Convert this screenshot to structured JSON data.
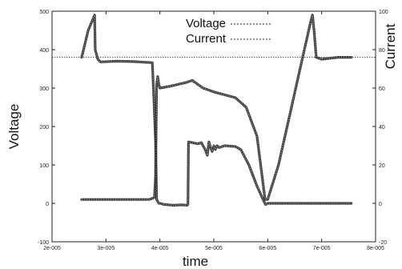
{
  "chart_data": {
    "type": "line",
    "title": "",
    "xlabel": "time",
    "ylabel_left": "Voltage",
    "ylabel_right": "Current",
    "xlim": [
      2e-05,
      8e-05
    ],
    "ylim_left": [
      -100,
      500
    ],
    "ylim_right": [
      -20,
      100
    ],
    "x_ticks": [
      2e-05,
      3e-05,
      4e-05,
      5e-05,
      6e-05,
      7e-05,
      8e-05
    ],
    "x_tick_labels": [
      "2e-005",
      "3e-005",
      "4e-005",
      "5e-005",
      "6e-005",
      "7e-005",
      "8e-005"
    ],
    "y_left_ticks": [
      -100,
      0,
      100,
      200,
      300,
      400,
      500
    ],
    "y_left_tick_labels": [
      "-100",
      "0",
      "100",
      "200",
      "300",
      "400",
      "500"
    ],
    "y_right_ticks": [
      -20,
      0,
      20,
      40,
      60,
      80,
      100
    ],
    "y_right_tick_labels": [
      "-20",
      "0",
      "20",
      "40",
      "60",
      "80",
      "100"
    ],
    "grid": false,
    "legend_position": "top-center",
    "series": [
      {
        "name": "Voltage",
        "axis": "left",
        "color": "#222222",
        "x": [
          2.55e-05,
          2.67e-05,
          2.79e-05,
          2.8e-05,
          2.85e-05,
          2.9e-05,
          3.2e-05,
          3.5e-05,
          3.86e-05,
          3.88e-05,
          3.92e-05,
          3.94e-05,
          3.98e-05,
          4.01e-05,
          4.07e-05,
          4.25e-05,
          4.4e-05,
          4.5e-05,
          4.52e-05,
          4.53e-05,
          4.7e-05,
          4.77e-05,
          4.8e-05,
          4.84e-05,
          4.88e-05,
          4.91e-05,
          4.94e-05,
          4.97e-05,
          5e-05,
          5.03e-05,
          5.06e-05,
          5.1e-05,
          5.2e-05,
          5.4e-05,
          5.5e-05,
          5.65e-05,
          5.8e-05,
          5.93e-05,
          5.96e-05,
          6e-05,
          6.2e-05,
          6.6e-05,
          6.83e-05,
          6.85e-05,
          6.88e-05,
          6.9e-05,
          7e-05,
          7.3e-05,
          7.55e-05
        ],
        "y": [
          380,
          450,
          490,
          400,
          375,
          368,
          370,
          369,
          366,
          300,
          160,
          10,
          0,
          0,
          -3,
          -5,
          -4,
          -5,
          -3,
          160,
          155,
          158,
          150,
          140,
          125,
          160,
          145,
          135,
          150,
          140,
          150,
          145,
          150,
          148,
          140,
          100,
          45,
          5,
          -3,
          0,
          0,
          0,
          0,
          0,
          0,
          0,
          0,
          0,
          0
        ]
      },
      {
        "name": "Current",
        "axis": "right",
        "color": "#222222",
        "x": [
          2.55e-05,
          2.75e-05,
          2.9e-05,
          3.8e-05,
          3.9e-05,
          3.92e-05,
          3.94e-05,
          3.96e-05,
          3.98e-05,
          4e-05,
          4.2e-05,
          4.5e-05,
          4.6e-05,
          4.8e-05,
          5e-05,
          5.4e-05,
          5.6e-05,
          5.8e-05,
          5.95e-05,
          6e-05,
          6.2e-05,
          6.4e-05,
          6.6e-05,
          6.8e-05,
          6.83e-05,
          6.86e-05,
          6.9e-05,
          7e-05,
          7.3e-05,
          7.55e-05
        ],
        "y": [
          2,
          2,
          2,
          2,
          3,
          15,
          62,
          66,
          62,
          60,
          61,
          63,
          64,
          60,
          58,
          55,
          50,
          35,
          2,
          2,
          20,
          45,
          70,
          95,
          98,
          90,
          76,
          75,
          76,
          76
        ]
      }
    ],
    "reference_line": {
      "axis": "left",
      "value": 380
    }
  }
}
